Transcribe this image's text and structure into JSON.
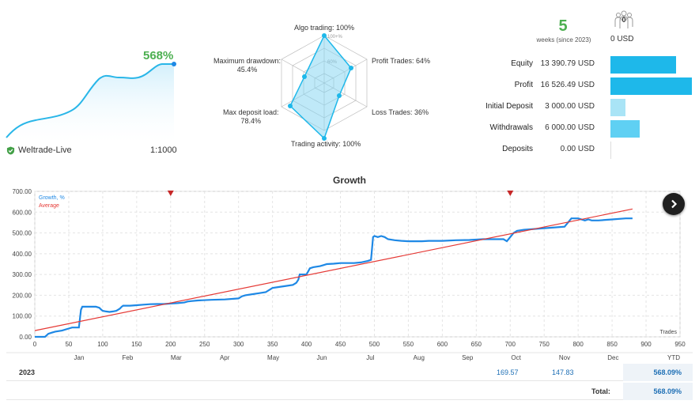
{
  "account": {
    "growth_value": "568%",
    "name": "Weltrade-Live",
    "leverage": "1:1000"
  },
  "radar": {
    "algo_trading": "Algo trading: 100%",
    "algo_scale": "100+%",
    "mid_scale": "60%",
    "profit_trades": "Profit Trades: 64%",
    "loss_trades": "Loss Trades: 36%",
    "trading_activity": "Trading activity: 100%",
    "max_deposit_load_label": "Max deposit load:",
    "max_deposit_load_value": "78.4%",
    "max_drawdown_label": "Maximum drawdown:",
    "max_drawdown_value": "45.4%",
    "metrics": {
      "algo_trading": 100,
      "profit_trades": 64,
      "loss_trades": 36,
      "trading_activity": 100,
      "max_deposit_load": 78.4,
      "max_drawdown": 45.4
    }
  },
  "stats": {
    "weeks": "5",
    "weeks_label": "weeks (since 2023)",
    "investors_count": "0",
    "investors_usd": "0 USD",
    "rows": [
      {
        "label": "Equity",
        "value": "13 390.79 USD",
        "bar_value": 13390.79,
        "color": "#1eb8ea"
      },
      {
        "label": "Profit",
        "value": "16 526.49 USD",
        "bar_value": 16526.49,
        "color": "#1eb8ea"
      },
      {
        "label": "Initial Deposit",
        "value": "3 000.00 USD",
        "bar_value": 3000,
        "color": "#a9e4f6"
      },
      {
        "label": "Withdrawals",
        "value": "6 000.00 USD",
        "bar_value": 6000,
        "color": "#5fd0f3"
      },
      {
        "label": "Deposits",
        "value": "0.00 USD",
        "bar_value": 0,
        "color": "#1eb8ea"
      }
    ]
  },
  "chart_title": "Growth",
  "chart_data": {
    "type": "line",
    "title": "Growth",
    "xlabel": "Trades",
    "ylabel": "",
    "xlim": [
      0,
      950
    ],
    "ylim": [
      0,
      700
    ],
    "xticks": [
      "0",
      "50",
      "100",
      "150",
      "200",
      "250",
      "300",
      "350",
      "400",
      "450",
      "500",
      "550",
      "600",
      "650",
      "700",
      "750",
      "800",
      "850",
      "900",
      "950"
    ],
    "yticks": [
      "0.00",
      "100.00",
      "200.00",
      "300.00",
      "400.00",
      "500.00",
      "600.00",
      "700.00"
    ],
    "months": [
      "Jan",
      "Feb",
      "Mar",
      "Apr",
      "May",
      "Jun",
      "Jul",
      "Aug",
      "Sep",
      "Oct",
      "Nov",
      "Dec"
    ],
    "series": [
      {
        "name": "Growth, %",
        "color": "#1e88e5",
        "x": [
          0,
          15,
          20,
          25,
          30,
          40,
          50,
          55,
          60,
          65,
          68,
          70,
          72,
          75,
          80,
          90,
          95,
          98,
          100,
          105,
          110,
          115,
          120,
          125,
          128,
          130,
          140,
          150,
          160,
          170,
          180,
          190,
          200,
          210,
          220,
          225,
          230,
          240,
          260,
          280,
          300,
          305,
          310,
          320,
          330,
          340,
          350,
          360,
          370,
          380,
          385,
          388,
          390,
          400,
          405,
          410,
          420,
          425,
          430,
          440,
          450,
          460,
          470,
          480,
          490,
          495,
          498,
          500,
          505,
          510,
          515,
          520,
          530,
          540,
          550,
          560,
          570,
          580,
          600,
          620,
          640,
          650,
          660,
          680,
          690,
          695,
          700,
          705,
          710,
          720,
          740,
          760,
          780,
          790,
          800,
          810,
          815,
          820,
          830,
          850,
          870,
          880
        ],
        "y": [
          0,
          0,
          15,
          20,
          25,
          30,
          40,
          45,
          45,
          45,
          130,
          145,
          145,
          145,
          145,
          145,
          140,
          130,
          125,
          122,
          120,
          122,
          125,
          135,
          145,
          150,
          150,
          152,
          155,
          157,
          158,
          158,
          160,
          162,
          165,
          170,
          172,
          175,
          178,
          180,
          185,
          195,
          200,
          205,
          210,
          215,
          235,
          240,
          245,
          250,
          260,
          275,
          300,
          300,
          330,
          335,
          340,
          345,
          350,
          352,
          355,
          355,
          355,
          358,
          365,
          370,
          480,
          485,
          480,
          485,
          480,
          470,
          465,
          462,
          460,
          460,
          460,
          462,
          462,
          465,
          466,
          468,
          470,
          470,
          470,
          460,
          480,
          500,
          510,
          515,
          520,
          525,
          530,
          570,
          570,
          560,
          565,
          560,
          560,
          565,
          570,
          570
        ]
      },
      {
        "name": "Average",
        "color": "#e53935",
        "x": [
          0,
          880
        ],
        "y": [
          30,
          615
        ]
      }
    ],
    "markers_x": [
      200,
      700
    ],
    "grid": true,
    "legend": "top-left"
  },
  "year_table": {
    "year": "2023",
    "oct": "169.57",
    "nov": "147.83",
    "ytd_label": "YTD",
    "ytd_value": "568.09%",
    "total_label": "Total:",
    "total_value": "568.09%"
  }
}
